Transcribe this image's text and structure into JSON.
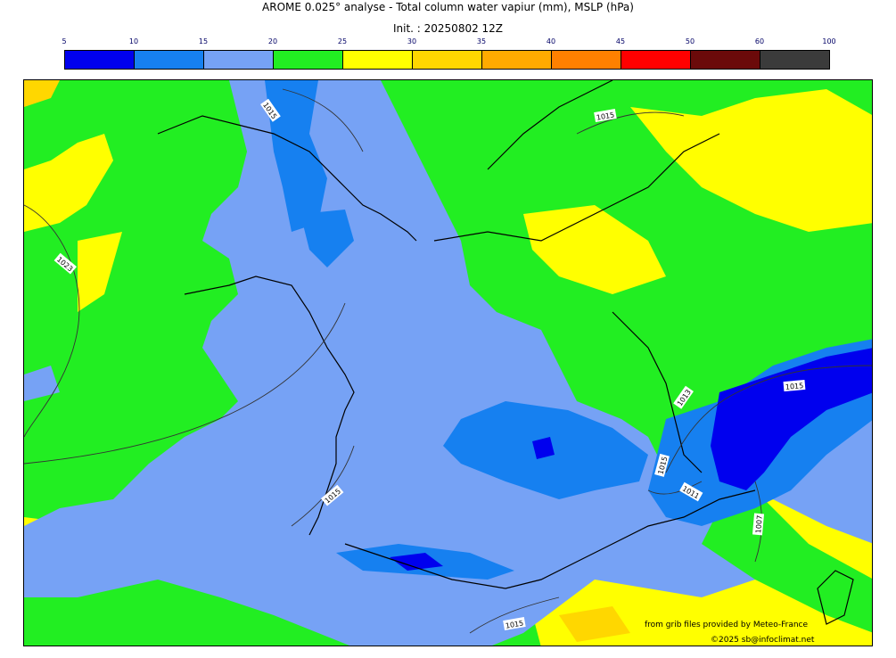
{
  "title_line1": "AROME 0.025° analyse - Total column water vapiur (mm), MSLP (hPa)",
  "title_line2": "Init. : 20250802 12Z",
  "colorbar": {
    "ticks": [
      "5",
      "10",
      "15",
      "20",
      "25",
      "30",
      "35",
      "40",
      "45",
      "50",
      "60",
      "100"
    ],
    "colors": [
      "#0000ee",
      "#1680f0",
      "#76a2f5",
      "#22ee22",
      "#ffff00",
      "#ffd700",
      "#ffaa00",
      "#ff8000",
      "#ff0000",
      "#6b0a0a",
      "#3b3b3b"
    ]
  },
  "isobar_labels": [
    "1015",
    "1015",
    "1023",
    "1015",
    "1013",
    "1015",
    "1015",
    "1011",
    "1007",
    "1015"
  ],
  "credits": {
    "source": "from grib files provided by Meteo-France",
    "copyright": "©2025 sb@infoclimat.net"
  }
}
